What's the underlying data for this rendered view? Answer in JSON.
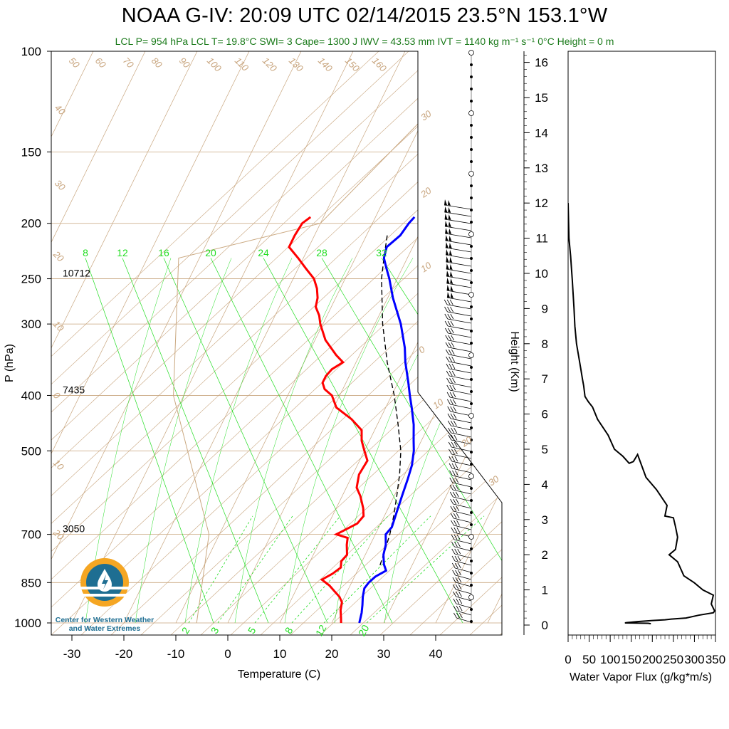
{
  "title": "NOAA G-IV: 20:09 UTC 02/14/2015  23.5°N 153.1°W",
  "subtitle": "LCL P= 954 hPa  LCL T= 19.8°C  SWI= 3  Cape= 1300 J  IWV = 43.53 mm  IVT = 1140 kg m⁻¹ s⁻¹  0°C Height = 0 m",
  "logo": {
    "text_line1": "Center for Western Weather",
    "text_line2": "and Water Extremes",
    "icon": "water-drop-icon"
  },
  "colors": {
    "temperature": "#ff0000",
    "dewpoint": "#0000ff",
    "parcel": "#000000",
    "skew_lines": "#c8a57e",
    "mixing_ratio": "#22dd22",
    "flux_profile": "#000000"
  },
  "chart_data": [
    {
      "type": "line",
      "kind": "skew-T log-p",
      "xlabel": "Temperature (C)",
      "ylabel": "P (hPa)",
      "x_ticks": [
        -30,
        -20,
        -10,
        0,
        10,
        20,
        30,
        40
      ],
      "y_ticks": [
        100,
        150,
        200,
        250,
        300,
        400,
        500,
        700,
        850,
        1000
      ],
      "ylim": [
        1000,
        100
      ],
      "height_labels": [
        {
          "p": 250,
          "text": "10712"
        },
        {
          "p": 400,
          "text": "7435"
        },
        {
          "p": 700,
          "text": "3050"
        }
      ],
      "isotherm_labels": [
        "50",
        "60",
        "70",
        "80",
        "90",
        "100",
        "110",
        "120",
        "130",
        "140",
        "150",
        "160",
        "40",
        "30",
        "20",
        "10",
        "0",
        "10",
        "20",
        "30",
        "20",
        "10",
        "0",
        "10",
        "20",
        "30"
      ],
      "mixing_ratio_labels_top": [
        "8",
        "12",
        "16",
        "20",
        "24",
        "28",
        "32"
      ],
      "mixing_ratio_labels_bottom": [
        "2",
        "3",
        "5",
        "8",
        "12",
        "20"
      ],
      "series": [
        {
          "name": "temperature",
          "p": [
            195,
            200,
            210,
            220,
            230,
            240,
            250,
            260,
            270,
            280,
            290,
            300,
            320,
            340,
            350,
            360,
            370,
            380,
            390,
            400,
            420,
            440,
            460,
            480,
            500,
            520,
            550,
            580,
            600,
            630,
            650,
            670,
            690,
            700,
            710,
            730,
            760,
            780,
            800,
            820,
            840,
            860,
            880,
            900,
            920,
            950,
            980,
            1000
          ],
          "t": [
            -22.5,
            -23.5,
            -23.8,
            -23.8,
            -21.0,
            -18.5,
            -16.0,
            -14.5,
            -13.5,
            -13.0,
            -11.5,
            -10.5,
            -8.0,
            -4.5,
            -2.5,
            -4.0,
            -4.5,
            -4.5,
            -3.5,
            -1.5,
            0.5,
            4.5,
            7.5,
            8.5,
            10.0,
            11.5,
            11.2,
            12.0,
            13.5,
            15.2,
            16.0,
            15.5,
            13.5,
            12.5,
            15.0,
            15.5,
            16.5,
            16.0,
            16.5,
            15.5,
            14.0,
            16.0,
            17.5,
            19.0,
            20.0,
            20.5,
            21.3,
            21.8
          ]
        },
        {
          "name": "dewpoint",
          "p": [
            195,
            200,
            210,
            220,
            230,
            240,
            250,
            270,
            300,
            330,
            350,
            380,
            400,
            420,
            450,
            480,
            500,
            530,
            560,
            600,
            640,
            680,
            700,
            730,
            760,
            790,
            810,
            830,
            850,
            870,
            900,
            930,
            960,
            1000
          ],
          "t": [
            -2.5,
            -3.0,
            -3.5,
            -5.0,
            -4.5,
            -3.0,
            -1.5,
            1.0,
            5.0,
            8.0,
            9.5,
            12.0,
            13.5,
            15.0,
            17.0,
            18.5,
            19.5,
            20.5,
            21.0,
            21.5,
            22.0,
            22.5,
            22.0,
            23.0,
            23.5,
            24.5,
            25.5,
            24.0,
            23.3,
            23.0,
            23.5,
            24.2,
            24.8,
            25.3
          ]
        },
        {
          "name": "parcel",
          "p": [
            210,
            230,
            250,
            300,
            350,
            400,
            450,
            500,
            550,
            600,
            650,
            700,
            750,
            800
          ],
          "t": [
            -6.0,
            -4.5,
            -3.0,
            1.5,
            6.0,
            10.5,
            14.0,
            17.0,
            19.0,
            20.5,
            21.8,
            22.8,
            23.4,
            23.9
          ]
        }
      ]
    },
    {
      "type": "line",
      "xlabel": "Water Vapor Flux (g/kg*m/s)",
      "ylabel": "Height (Km)",
      "x_ticks": [
        0,
        50,
        100,
        150,
        200,
        250,
        300,
        350
      ],
      "y_ticks": [
        0,
        1,
        2,
        3,
        4,
        5,
        6,
        7,
        8,
        9,
        10,
        11,
        12,
        13,
        14,
        15,
        16
      ],
      "xlim": [
        0,
        350
      ],
      "ylim": [
        0,
        16.3
      ],
      "series": [
        {
          "name": "water vapor flux",
          "x": [
            0,
            2,
            6,
            10,
            14,
            16,
            20,
            30,
            34,
            37,
            40,
            48,
            58,
            70,
            95,
            110,
            130,
            145,
            155,
            165,
            185,
            210,
            235,
            230,
            250,
            255,
            260,
            255,
            240,
            260,
            275,
            300,
            320,
            345,
            340,
            348,
            345,
            310,
            280,
            245,
            230,
            200,
            165,
            150,
            140,
            135,
            190,
            195,
            195,
            195
          ],
          "h": [
            12.0,
            11.0,
            10.5,
            9.8,
            9.0,
            8.5,
            8.0,
            7.3,
            7.0,
            6.8,
            6.5,
            6.35,
            6.2,
            5.85,
            5.4,
            5.0,
            4.8,
            4.6,
            4.65,
            4.85,
            4.2,
            3.85,
            3.4,
            3.1,
            3.05,
            2.8,
            2.5,
            2.15,
            2.0,
            1.8,
            1.4,
            1.2,
            1.0,
            0.85,
            0.6,
            0.4,
            0.35,
            0.28,
            0.2,
            0.17,
            0.15,
            0.13,
            0.1,
            0.08,
            0.07,
            0.06,
            0.05,
            0.04,
            0.03,
            0.02
          ]
        }
      ]
    }
  ]
}
